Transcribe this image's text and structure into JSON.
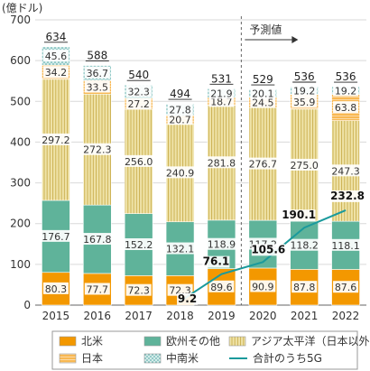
{
  "chart_data": {
    "type": "bar",
    "stacked": true,
    "unit_label": "(億ドル)",
    "forecast_label": "予測値",
    "categories": [
      "2015",
      "2016",
      "2017",
      "2018",
      "2019",
      "2020",
      "2021",
      "2022"
    ],
    "ylim": [
      0,
      700
    ],
    "yticks": [
      "0",
      "100",
      "200",
      "300",
      "400",
      "500",
      "600",
      "700"
    ],
    "series": [
      {
        "name": "北米",
        "color": "#f39800",
        "pattern": "solid",
        "values": [
          80.3,
          77.7,
          72.3,
          72.3,
          89.6,
          90.9,
          87.8,
          87.6
        ]
      },
      {
        "name": "欧州その他",
        "color": "#5fb39a",
        "pattern": "solid",
        "values": [
          176.7,
          167.8,
          152.2,
          132.1,
          118.9,
          117.2,
          118.2,
          118.1
        ]
      },
      {
        "name": "アジア太平洋（日本以外）",
        "color": "#e3cf78",
        "pattern": "vlines",
        "values": [
          297.2,
          272.3,
          256.0,
          240.9,
          281.8,
          276.7,
          275.0,
          247.3
        ]
      },
      {
        "name": "日本",
        "color": "#f8b95c",
        "pattern": "hlines",
        "values": [
          34.2,
          33.5,
          27.2,
          20.7,
          18.7,
          24.5,
          35.9,
          63.8
        ]
      },
      {
        "name": "中南米",
        "color": "#c9e6e4",
        "pattern": "dots",
        "values": [
          45.6,
          36.7,
          32.3,
          27.8,
          21.9,
          20.1,
          19.2,
          19.2
        ]
      }
    ],
    "value_labels": [
      [
        "80.3",
        "77.7",
        "72.3",
        "72.3",
        "89.6",
        "90.9",
        "87.8",
        "87.6"
      ],
      [
        "176.7",
        "167.8",
        "152.2",
        "132.1",
        "118.9",
        "117.2",
        "118.2",
        "118.1"
      ],
      [
        "297.2",
        "272.3",
        "256.0",
        "240.9",
        "281.8",
        "276.7",
        "275.0",
        "247.3"
      ],
      [
        "34.2",
        "33.5",
        "27.2",
        "20.7",
        "18.7",
        "24.5",
        "35.9",
        "63.8"
      ],
      [
        "45.6",
        "36.7",
        "32.3",
        "27.8",
        "21.9",
        "20.1",
        "19.2",
        "19.2"
      ]
    ],
    "totals": [
      "634",
      "588",
      "540",
      "494",
      "531",
      "529",
      "536",
      "536"
    ],
    "line": {
      "name": "合計のうち5G",
      "color": "#1a9a9c",
      "start_index": 3,
      "values": [
        9.2,
        76.1,
        105.6,
        190.1,
        232.8
      ],
      "labels": [
        "9.2",
        "76.1",
        "105.6",
        "190.1",
        "232.8"
      ]
    },
    "forecast_start_index": 5,
    "legend_position": "bottom"
  }
}
